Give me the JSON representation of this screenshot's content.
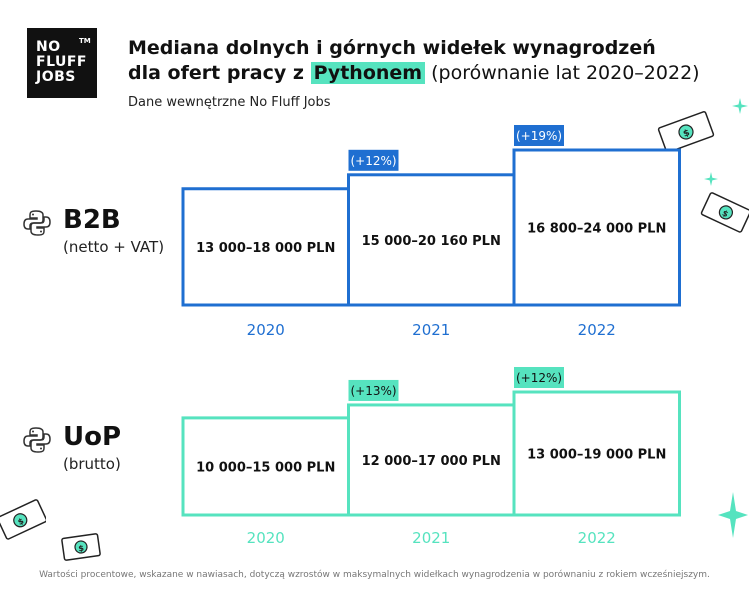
{
  "logo": {
    "lines": [
      "NO",
      "FLUFF",
      "JOBS"
    ],
    "tm": "TM"
  },
  "header": {
    "title_line1": "Mediana dolnych i górnych widełek wynagrodzeń",
    "title_line2_prefix": "dla ofert pracy z ",
    "title_highlight": "Pythonem",
    "title_line2_suffix": " (porównanie lat 2020–2022)",
    "subtitle": "Dane wewnętrzne No Fluff Jobs"
  },
  "colors": {
    "b2b": "#1f6fd1",
    "uop": "#56e3bf",
    "b2b_badge_bg": "#1f6fd1",
    "uop_badge_bg": "#56e3bf"
  },
  "icons": [
    "python-icon",
    "banknote-icon",
    "sparkle-icon"
  ],
  "chart_data": [
    {
      "type": "bar",
      "group": "B2B",
      "group_note": "(netto + VAT)",
      "categories": [
        "2020",
        "2021",
        "2022"
      ],
      "series": [
        {
          "name": "dolne widełki",
          "values": [
            13000,
            15000,
            16800
          ]
        },
        {
          "name": "górne widełki",
          "values": [
            18000,
            20160,
            24000
          ]
        }
      ],
      "labels": [
        "13 000–18 000 PLN",
        "15 000–20 160 PLN",
        "16 800–24 000 PLN"
      ],
      "changes": [
        null,
        "(+12%)",
        "(+19%)"
      ],
      "ylim": [
        0,
        24000
      ]
    },
    {
      "type": "bar",
      "group": "UoP",
      "group_note": "(brutto)",
      "categories": [
        "2020",
        "2021",
        "2022"
      ],
      "series": [
        {
          "name": "dolne widełki",
          "values": [
            10000,
            12000,
            13000
          ]
        },
        {
          "name": "górne widełki",
          "values": [
            15000,
            17000,
            19000
          ]
        }
      ],
      "labels": [
        "10 000–15 000 PLN",
        "12 000–17 000 PLN",
        "13 000–19 000 PLN"
      ],
      "changes": [
        null,
        "(+13%)",
        "(+12%)"
      ],
      "ylim": [
        0,
        19000
      ]
    }
  ],
  "footnote": "Wartości procentowe, wskazane w nawiasach, dotyczą wzrostów w maksymalnych widełkach wynagrodzenia w porównaniu z rokiem wcześniejszym."
}
